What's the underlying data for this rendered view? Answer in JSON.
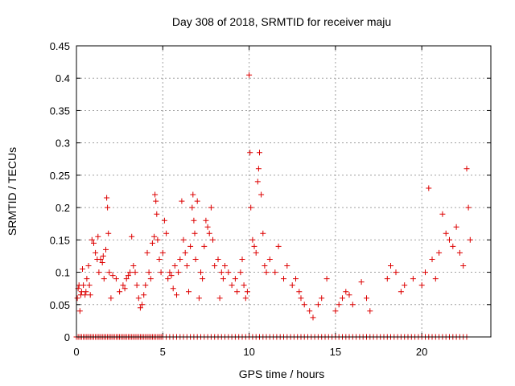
{
  "chart_data": {
    "type": "scatter",
    "title": "Day 308 of 2018, SRMTID for receiver maju",
    "xlabel": "GPS time / hours",
    "ylabel": "SRMTID / TECUs",
    "xlim": [
      0,
      24
    ],
    "ylim": [
      0,
      0.45
    ],
    "xticks": [
      0,
      5,
      10,
      15,
      20
    ],
    "yticks": [
      0,
      0.05,
      0.1,
      0.15,
      0.2,
      0.25,
      0.3,
      0.35,
      0.4,
      0.45
    ],
    "xtick_labels": [
      "0",
      "5",
      "10",
      "15",
      "20"
    ],
    "ytick_labels": [
      "0",
      "0.05",
      "0.1",
      "0.15",
      "0.2",
      "0.25",
      "0.3",
      "0.35",
      "0.4",
      "0.45"
    ],
    "grid": true,
    "marker": "+",
    "color": "#dd0000",
    "series": [
      {
        "name": "SRMTID",
        "points": [
          [
            0.05,
            0.06
          ],
          [
            0.1,
            0.075
          ],
          [
            0.15,
            0.08
          ],
          [
            0.2,
            0.04
          ],
          [
            0.25,
            0.065
          ],
          [
            0.3,
            0.07
          ],
          [
            0.35,
            0.105
          ],
          [
            0.4,
            0.08
          ],
          [
            0.5,
            0.065
          ],
          [
            0.55,
            0.07
          ],
          [
            0.6,
            0.09
          ],
          [
            0.7,
            0.11
          ],
          [
            0.75,
            0.08
          ],
          [
            0.8,
            0.065
          ],
          [
            0.9,
            0.15
          ],
          [
            1.0,
            0.145
          ],
          [
            1.1,
            0.13
          ],
          [
            1.2,
            0.12
          ],
          [
            1.25,
            0.155
          ],
          [
            1.3,
            0.1
          ],
          [
            1.4,
            0.12
          ],
          [
            1.5,
            0.115
          ],
          [
            1.55,
            0.125
          ],
          [
            1.6,
            0.09
          ],
          [
            1.7,
            0.135
          ],
          [
            1.75,
            0.215
          ],
          [
            1.8,
            0.2
          ],
          [
            1.85,
            0.16
          ],
          [
            1.9,
            0.1
          ],
          [
            2.0,
            0.06
          ],
          [
            2.1,
            0.095
          ],
          [
            2.3,
            0.09
          ],
          [
            2.5,
            0.07
          ],
          [
            2.7,
            0.08
          ],
          [
            2.8,
            0.075
          ],
          [
            2.9,
            0.09
          ],
          [
            3.0,
            0.095
          ],
          [
            3.1,
            0.1
          ],
          [
            3.2,
            0.155
          ],
          [
            3.3,
            0.11
          ],
          [
            3.4,
            0.1
          ],
          [
            3.5,
            0.08
          ],
          [
            3.6,
            0.06
          ],
          [
            3.7,
            0.045
          ],
          [
            3.8,
            0.05
          ],
          [
            3.9,
            0.065
          ],
          [
            4.0,
            0.08
          ],
          [
            4.1,
            0.13
          ],
          [
            4.2,
            0.1
          ],
          [
            4.3,
            0.09
          ],
          [
            4.4,
            0.145
          ],
          [
            4.5,
            0.155
          ],
          [
            4.55,
            0.22
          ],
          [
            4.6,
            0.21
          ],
          [
            4.65,
            0.19
          ],
          [
            4.7,
            0.15
          ],
          [
            4.8,
            0.12
          ],
          [
            4.9,
            0.1
          ],
          [
            5.0,
            0.13
          ],
          [
            5.1,
            0.18
          ],
          [
            5.2,
            0.16
          ],
          [
            5.3,
            0.09
          ],
          [
            5.4,
            0.1
          ],
          [
            5.5,
            0.095
          ],
          [
            5.6,
            0.075
          ],
          [
            5.7,
            0.11
          ],
          [
            5.8,
            0.065
          ],
          [
            5.9,
            0.1
          ],
          [
            6.0,
            0.12
          ],
          [
            6.1,
            0.21
          ],
          [
            6.2,
            0.15
          ],
          [
            6.3,
            0.13
          ],
          [
            6.4,
            0.11
          ],
          [
            6.5,
            0.07
          ],
          [
            6.6,
            0.14
          ],
          [
            6.7,
            0.2
          ],
          [
            6.75,
            0.22
          ],
          [
            6.8,
            0.18
          ],
          [
            6.85,
            0.16
          ],
          [
            6.9,
            0.12
          ],
          [
            7.0,
            0.21
          ],
          [
            7.1,
            0.06
          ],
          [
            7.2,
            0.1
          ],
          [
            7.3,
            0.09
          ],
          [
            7.4,
            0.14
          ],
          [
            7.5,
            0.18
          ],
          [
            7.6,
            0.17
          ],
          [
            7.7,
            0.16
          ],
          [
            7.8,
            0.2
          ],
          [
            7.9,
            0.15
          ],
          [
            8.0,
            0.11
          ],
          [
            8.2,
            0.12
          ],
          [
            8.3,
            0.06
          ],
          [
            8.4,
            0.1
          ],
          [
            8.5,
            0.09
          ],
          [
            8.6,
            0.11
          ],
          [
            8.8,
            0.1
          ],
          [
            9.0,
            0.08
          ],
          [
            9.2,
            0.09
          ],
          [
            9.3,
            0.07
          ],
          [
            9.5,
            0.1
          ],
          [
            9.6,
            0.12
          ],
          [
            9.7,
            0.08
          ],
          [
            9.8,
            0.06
          ],
          [
            9.9,
            0.07
          ],
          [
            10.0,
            0.405
          ],
          [
            10.05,
            0.285
          ],
          [
            10.1,
            0.2
          ],
          [
            10.2,
            0.15
          ],
          [
            10.3,
            0.14
          ],
          [
            10.4,
            0.13
          ],
          [
            10.5,
            0.24
          ],
          [
            10.55,
            0.26
          ],
          [
            10.6,
            0.285
          ],
          [
            10.7,
            0.22
          ],
          [
            10.8,
            0.16
          ],
          [
            10.9,
            0.11
          ],
          [
            11.0,
            0.1
          ],
          [
            11.2,
            0.12
          ],
          [
            11.5,
            0.1
          ],
          [
            11.7,
            0.14
          ],
          [
            12.0,
            0.09
          ],
          [
            12.2,
            0.11
          ],
          [
            12.5,
            0.08
          ],
          [
            12.7,
            0.09
          ],
          [
            12.9,
            0.07
          ],
          [
            13.0,
            0.06
          ],
          [
            13.2,
            0.05
          ],
          [
            13.5,
            0.04
          ],
          [
            13.7,
            0.03
          ],
          [
            14.0,
            0.05
          ],
          [
            14.2,
            0.06
          ],
          [
            14.5,
            0.09
          ],
          [
            15.0,
            0.04
          ],
          [
            15.2,
            0.05
          ],
          [
            15.4,
            0.06
          ],
          [
            15.6,
            0.07
          ],
          [
            15.8,
            0.065
          ],
          [
            16.0,
            0.05
          ],
          [
            16.5,
            0.085
          ],
          [
            16.8,
            0.06
          ],
          [
            17.0,
            0.04
          ],
          [
            18.0,
            0.09
          ],
          [
            18.2,
            0.11
          ],
          [
            18.5,
            0.1
          ],
          [
            18.8,
            0.07
          ],
          [
            19.0,
            0.08
          ],
          [
            19.5,
            0.09
          ],
          [
            20.0,
            0.08
          ],
          [
            20.2,
            0.1
          ],
          [
            20.4,
            0.23
          ],
          [
            20.6,
            0.12
          ],
          [
            20.8,
            0.09
          ],
          [
            21.0,
            0.13
          ],
          [
            21.2,
            0.19
          ],
          [
            21.4,
            0.16
          ],
          [
            21.6,
            0.15
          ],
          [
            21.8,
            0.14
          ],
          [
            22.0,
            0.17
          ],
          [
            22.2,
            0.13
          ],
          [
            22.4,
            0.11
          ],
          [
            22.6,
            0.26
          ],
          [
            22.7,
            0.2
          ],
          [
            22.8,
            0.15
          ]
        ]
      }
    ],
    "zero_points_x": [
      0,
      0.1,
      0.2,
      0.3,
      0.4,
      0.5,
      0.6,
      0.7,
      0.8,
      0.9,
      1,
      1.1,
      1.2,
      1.3,
      1.4,
      1.5,
      1.6,
      1.7,
      1.8,
      1.9,
      2,
      2.1,
      2.2,
      2.3,
      2.4,
      2.5,
      2.6,
      2.7,
      2.8,
      2.9,
      3,
      3.1,
      3.2,
      3.3,
      3.4,
      3.5,
      3.6,
      3.7,
      3.8,
      3.9,
      4,
      4.1,
      4.2,
      4.3,
      4.4,
      4.5,
      4.6,
      4.7,
      4.8,
      4.9,
      5,
      5.2,
      5.4,
      5.6,
      5.8,
      6,
      6.2,
      6.4,
      6.6,
      6.8,
      7,
      7.2,
      7.4,
      7.6,
      7.8,
      8,
      8.2,
      8.4,
      8.6,
      8.8,
      9,
      9.2,
      9.4,
      9.6,
      9.8,
      10,
      10.2,
      10.4,
      10.6,
      10.8,
      11,
      11.2,
      11.4,
      11.6,
      11.8,
      12,
      12.2,
      12.4,
      12.6,
      12.8,
      13,
      13.2,
      13.4,
      13.6,
      13.8,
      14,
      14.2,
      14.4,
      14.6,
      14.8,
      15,
      15.2,
      15.4,
      15.6,
      15.8,
      16,
      16.2,
      16.4,
      16.6,
      16.8,
      17,
      17.2,
      17.4,
      17.6,
      17.8,
      18,
      18.2,
      18.4,
      18.6,
      18.8,
      19,
      19.2,
      19.4,
      19.6,
      19.8,
      20,
      20.2,
      20.4,
      20.6,
      20.8,
      21,
      21.2,
      21.4,
      21.6,
      21.8,
      22,
      22.2,
      22.4,
      22.6
    ]
  }
}
